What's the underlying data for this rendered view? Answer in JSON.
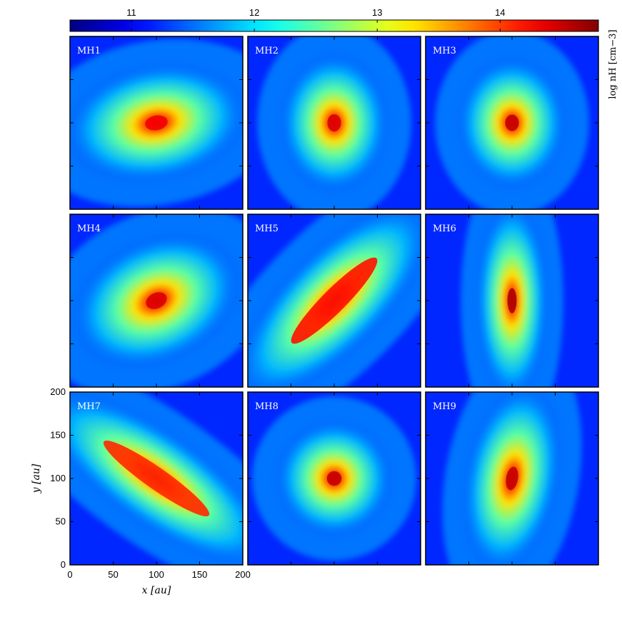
{
  "chart_data": {
    "type": "heatmap",
    "grid": {
      "rows": 3,
      "cols": 3
    },
    "panels": [
      {
        "label": "MH1",
        "peak": [
          100,
          100
        ],
        "structure": "blob",
        "peak_log_nH": 14.3,
        "angle": -10,
        "sx": 50,
        "sy": 32
      },
      {
        "label": "MH2",
        "peak": [
          100,
          100
        ],
        "structure": "core",
        "peak_log_nH": 14.4,
        "angle": 0,
        "sx": 30,
        "sy": 38
      },
      {
        "label": "MH3",
        "peak": [
          100,
          100
        ],
        "structure": "core",
        "peak_log_nH": 14.5,
        "angle": 0,
        "sx": 30,
        "sy": 36
      },
      {
        "label": "MH4",
        "peak": [
          100,
          100
        ],
        "structure": "core",
        "peak_log_nH": 14.4,
        "angle": -25,
        "sx": 48,
        "sy": 34
      },
      {
        "label": "MH5",
        "peak": [
          100,
          100
        ],
        "structure": "filament",
        "peak_log_nH": 14.2,
        "angle": -45,
        "sx": 70,
        "sy": 28
      },
      {
        "label": "MH6",
        "peak": [
          100,
          100
        ],
        "structure": "core",
        "peak_log_nH": 14.6,
        "angle": 0,
        "sx": 20,
        "sy": 55
      },
      {
        "label": "MH7",
        "peak": [
          100,
          100
        ],
        "structure": "filament",
        "peak_log_nH": 14.1,
        "angle": 35,
        "sx": 75,
        "sy": 26
      },
      {
        "label": "MH8",
        "peak": [
          100,
          100
        ],
        "structure": "core",
        "peak_log_nH": 14.5,
        "angle": 0,
        "sx": 32,
        "sy": 32
      },
      {
        "label": "MH9",
        "peak": [
          100,
          100
        ],
        "structure": "core",
        "peak_log_nH": 14.5,
        "angle": 10,
        "sx": 26,
        "sy": 52
      }
    ],
    "xlabel": "x [au]",
    "ylabel": "y [au]",
    "xlim": [
      0,
      200
    ],
    "ylim": [
      0,
      200
    ],
    "xticks": [
      "0",
      "50",
      "100",
      "150",
      "200"
    ],
    "yticks": [
      "0",
      "50",
      "100",
      "150",
      "200"
    ],
    "colorbar": {
      "label": "log nH [cm−3]",
      "range": [
        10.5,
        14.8
      ],
      "ticks": [
        "11",
        "12",
        "13",
        "14"
      ],
      "colormap": "jet"
    },
    "grid_lines": false
  }
}
